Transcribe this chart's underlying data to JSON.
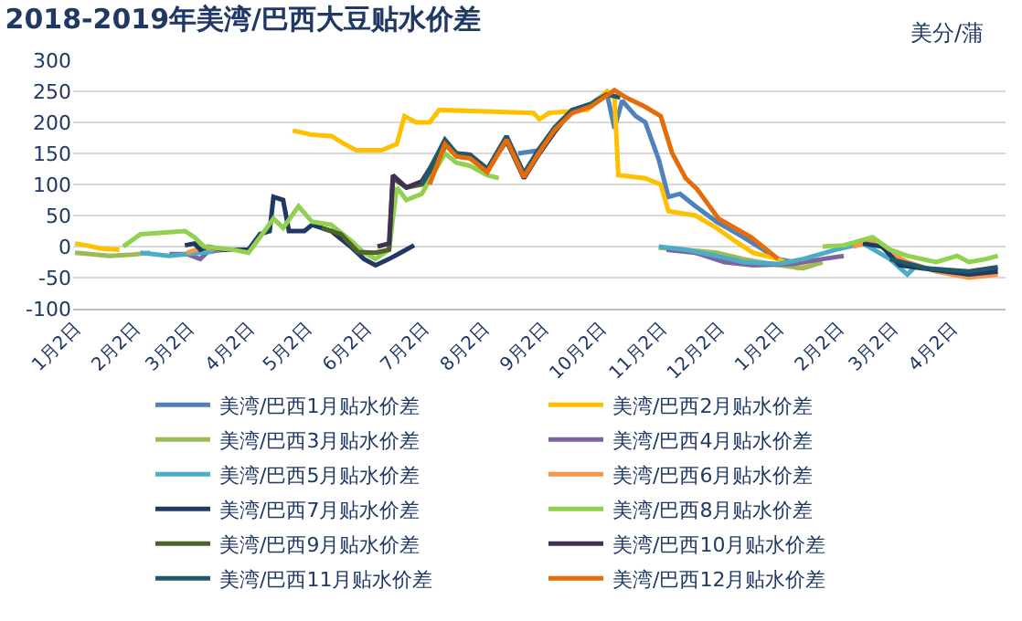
{
  "chart_data": {
    "type": "line",
    "title": "2018-2019年美湾/巴西大豆贴水价差",
    "annotations": [
      "美分/蒲"
    ],
    "xlim": [
      "2018-01-01",
      "2019-04-30"
    ],
    "xticks": [
      {
        "value": "2018-01-02",
        "label": "1月2日"
      },
      {
        "value": "2018-02-02",
        "label": "2月2日"
      },
      {
        "value": "2018-03-02",
        "label": "3月2日"
      },
      {
        "value": "2018-04-02",
        "label": "4月2日"
      },
      {
        "value": "2018-05-02",
        "label": "5月2日"
      },
      {
        "value": "2018-06-02",
        "label": "6月2日"
      },
      {
        "value": "2018-07-02",
        "label": "7月2日"
      },
      {
        "value": "2018-08-02",
        "label": "8月2日"
      },
      {
        "value": "2018-09-02",
        "label": "9月2日"
      },
      {
        "value": "2018-10-02",
        "label": "10月2日"
      },
      {
        "value": "2018-11-02",
        "label": "11月2日"
      },
      {
        "value": "2018-12-02",
        "label": "12月2日"
      },
      {
        "value": "2019-01-02",
        "label": "1月2日"
      },
      {
        "value": "2019-02-02",
        "label": "2月2日"
      },
      {
        "value": "2019-03-02",
        "label": "3月2日"
      },
      {
        "value": "2019-04-02",
        "label": "4月2日"
      }
    ],
    "ylim": [
      -100,
      300
    ],
    "yticks": [
      -100,
      -50,
      0,
      50,
      100,
      150,
      200,
      250,
      300
    ],
    "grid": "y",
    "legend": "bottom",
    "marker": "none",
    "line_style": "solid",
    "series": [
      {
        "name": "美湾/巴西1月贴水价差",
        "color": "#4f81bd",
        "x": [
          "2018-08-20",
          "2018-08-31",
          "2018-09-08",
          "2018-09-17",
          "2018-09-27",
          "2018-10-05",
          "2018-10-09",
          "2018-10-13",
          "2018-10-20",
          "2018-10-25",
          "2018-11-01",
          "2018-11-06",
          "2018-11-12",
          "2018-11-20",
          "2018-12-01",
          "2018-12-15",
          "2019-01-02",
          "2019-01-10"
        ],
        "values": [
          150,
          155,
          188,
          218,
          230,
          248,
          190,
          235,
          210,
          200,
          140,
          80,
          85,
          65,
          40,
          15,
          -20,
          -25
        ]
      },
      {
        "name": "美湾/巴西2月贴水价差",
        "color": "#ffc000",
        "x": [
          "2018-01-02",
          "2018-01-08",
          "2018-01-15",
          "2018-01-25",
          "2018-03-01",
          "2018-04-25",
          "2018-05-05",
          "2018-05-15",
          "2018-05-22",
          "2018-05-28",
          "2018-06-10",
          "2018-06-18",
          "2018-06-22",
          "2018-06-28",
          "2018-07-05",
          "2018-07-10",
          "2018-08-28",
          "2018-08-31",
          "2018-09-05",
          "2018-09-25",
          "2018-10-05",
          "2018-10-09",
          "2018-10-11",
          "2018-10-25",
          "2018-11-02",
          "2018-11-06",
          "2018-11-20",
          "2018-12-01",
          "2018-12-10",
          "2018-12-20",
          "2019-01-02",
          "2019-01-12",
          "2019-01-20"
        ],
        "values": [
          5,
          2,
          -3,
          -5,
          null,
          187,
          180,
          178,
          165,
          155,
          155,
          165,
          210,
          200,
          200,
          220,
          215,
          205,
          215,
          220,
          250,
          240,
          115,
          110,
          100,
          57,
          50,
          30,
          10,
          -10,
          -20,
          -35,
          -30
        ]
      },
      {
        "name": "美湾/巴西3月贴水价差",
        "color": "#9bbb59",
        "x": [
          "2018-01-02",
          "2018-01-10",
          "2018-01-20",
          "2018-02-01",
          "2018-02-10",
          "2018-06-01",
          "2018-11-01",
          "2018-11-15",
          "2018-12-01",
          "2018-12-15",
          "2019-01-02",
          "2019-01-15",
          "2019-01-25"
        ],
        "values": [
          -10,
          -12,
          -15,
          -13,
          -10,
          null,
          -2,
          -5,
          -10,
          -20,
          -30,
          -35,
          -25
        ]
      },
      {
        "name": "美湾/巴西4月贴水价差",
        "color": "#8064a2",
        "x": [
          "2018-02-20",
          "2018-03-01",
          "2018-03-08",
          "2018-03-12",
          "2018-03-20",
          "2018-07-01",
          "2018-11-05",
          "2018-11-20",
          "2018-12-05",
          "2018-12-20",
          "2019-01-10",
          "2019-01-25",
          "2019-02-05"
        ],
        "values": [
          -12,
          -12,
          -20,
          -8,
          -5,
          null,
          -5,
          -10,
          -25,
          -30,
          -28,
          -20,
          -15
        ]
      },
      {
        "name": "美湾/巴西5月贴水价差",
        "color": "#4bacc6",
        "x": [
          "2018-02-05",
          "2018-02-20",
          "2018-03-01",
          "2018-03-08",
          "2018-03-15",
          "2018-07-01",
          "2018-11-01",
          "2018-11-15",
          "2018-12-01",
          "2018-12-15",
          "2019-01-02",
          "2019-01-15",
          "2019-02-01",
          "2019-02-15",
          "2019-03-01",
          "2019-03-10",
          "2019-03-15"
        ],
        "values": [
          -10,
          -15,
          -12,
          -10,
          -8,
          null,
          0,
          -5,
          -15,
          -25,
          -28,
          -20,
          -5,
          5,
          -20,
          -45,
          -30
        ]
      },
      {
        "name": "美湾/巴西6月贴水价差",
        "color": "#f79646",
        "x": [
          "2018-03-01",
          "2018-03-06",
          "2018-03-10",
          "2018-03-20",
          "2018-08-01",
          "2019-02-10",
          "2019-02-20",
          "2019-03-01",
          "2019-03-10",
          "2019-03-25",
          "2019-04-11",
          "2019-04-26"
        ],
        "values": [
          -10,
          -5,
          -2,
          -5,
          null,
          0,
          10,
          -10,
          -25,
          -40,
          -50,
          -45
        ]
      },
      {
        "name": "美湾/巴西7月贴水价差",
        "color": "#1f3864",
        "x": [
          "2018-02-28",
          "2018-03-05",
          "2018-03-08",
          "2018-03-12",
          "2018-03-20",
          "2018-04-02",
          "2018-04-08",
          "2018-04-13",
          "2018-04-15",
          "2018-04-20",
          "2018-04-23",
          "2018-05-01",
          "2018-05-05",
          "2018-05-15",
          "2018-05-25",
          "2018-06-01",
          "2018-06-07",
          "2018-06-14",
          "2018-06-20",
          "2018-06-27",
          "2018-10-01",
          "2019-02-15",
          "2019-02-25",
          "2019-03-06",
          "2019-03-25",
          "2019-04-11",
          "2019-04-26"
        ],
        "values": [
          2,
          5,
          -5,
          0,
          -5,
          -5,
          20,
          25,
          80,
          75,
          25,
          25,
          35,
          25,
          0,
          -20,
          -30,
          -20,
          -10,
          2,
          null,
          5,
          0,
          -30,
          -38,
          -45,
          -40
        ]
      },
      {
        "name": "美湾/巴西8月贴水价差",
        "color": "#92d050",
        "x": [
          "2018-01-27",
          "2018-02-05",
          "2018-02-15",
          "2018-02-28",
          "2018-03-05",
          "2018-03-10",
          "2018-03-25",
          "2018-04-02",
          "2018-04-08",
          "2018-04-15",
          "2018-04-20",
          "2018-04-28",
          "2018-05-05",
          "2018-05-15",
          "2018-05-25",
          "2018-06-01",
          "2018-06-07",
          "2018-06-14",
          "2018-06-18",
          "2018-06-23",
          "2018-07-01",
          "2018-07-13",
          "2018-07-19",
          "2018-07-26",
          "2018-08-04",
          "2018-08-10",
          "2018-11-01",
          "2019-01-25",
          "2019-02-05",
          "2019-02-20",
          "2019-03-01",
          "2019-03-10",
          "2019-03-25",
          "2019-04-05",
          "2019-04-11",
          "2019-04-20",
          "2019-04-26"
        ],
        "values": [
          0,
          20,
          22,
          25,
          15,
          0,
          -5,
          -10,
          15,
          45,
          30,
          65,
          40,
          35,
          10,
          -10,
          -20,
          -5,
          95,
          75,
          85,
          150,
          135,
          130,
          115,
          110,
          null,
          0,
          2,
          15,
          -5,
          -15,
          -25,
          -15,
          -25,
          -20,
          -15
        ]
      },
      {
        "name": "美湾/巴西9月贴水价差",
        "color": "#4f6228",
        "x": [
          "2018-05-10",
          "2018-05-20",
          "2018-05-29",
          "2018-06-07",
          "2018-06-14",
          "2018-06-16",
          "2018-06-23",
          "2018-07-01",
          "2018-07-13"
        ],
        "values": [
          30,
          20,
          -9,
          -10,
          -5,
          110,
          95,
          100,
          160
        ]
      },
      {
        "name": "美湾/巴西10月贴水价差",
        "color": "#3f3151",
        "x": [
          "2018-06-08",
          "2018-06-14",
          "2018-06-16",
          "2018-06-23",
          "2018-07-01",
          "2018-07-13",
          "2018-07-19",
          "2018-07-26",
          "2018-08-04",
          "2018-08-14",
          "2018-08-23",
          "2018-08-31",
          "2018-09-08",
          "2018-09-12"
        ],
        "values": [
          0,
          5,
          115,
          95,
          105,
          165,
          150,
          148,
          125,
          170,
          110,
          150,
          185,
          200
        ]
      },
      {
        "name": "美湾/巴西11月贴水价差",
        "color": "#215968",
        "x": [
          "2018-07-01",
          "2018-07-13",
          "2018-07-19",
          "2018-07-26",
          "2018-08-04",
          "2018-08-14",
          "2018-08-23",
          "2018-08-31",
          "2018-09-08",
          "2018-09-17",
          "2018-09-27",
          "2018-10-05",
          "2018-10-12",
          "2018-12-01",
          "2019-03-01",
          "2019-03-20",
          "2019-04-11",
          "2019-04-26"
        ],
        "values": [
          100,
          172,
          150,
          147,
          125,
          178,
          118,
          158,
          192,
          220,
          230,
          245,
          240,
          null,
          -20,
          -35,
          -40,
          -33
        ]
      },
      {
        "name": "美湾/巴西12月贴水价差",
        "color": "#e46c0a",
        "x": [
          "2018-07-05",
          "2018-07-13",
          "2018-07-19",
          "2018-07-26",
          "2018-08-04",
          "2018-08-14",
          "2018-08-23",
          "2018-08-31",
          "2018-09-08",
          "2018-09-17",
          "2018-09-27",
          "2018-10-09",
          "2018-10-15",
          "2018-10-25",
          "2018-11-02",
          "2018-11-08",
          "2018-11-15",
          "2018-11-21",
          "2018-12-02",
          "2018-12-19",
          "2019-01-02"
        ],
        "values": [
          100,
          165,
          145,
          142,
          120,
          172,
          112,
          152,
          188,
          215,
          226,
          252,
          240,
          225,
          210,
          150,
          110,
          92,
          45,
          15,
          -20
        ]
      }
    ]
  }
}
